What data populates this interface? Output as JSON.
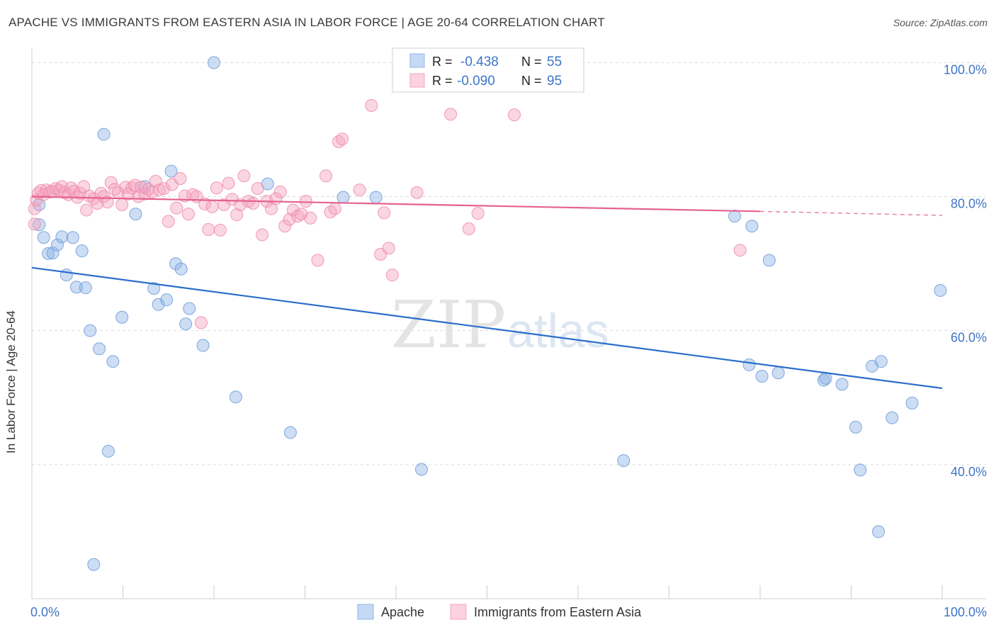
{
  "header": {
    "title": "APACHE VS IMMIGRANTS FROM EASTERN ASIA IN LABOR FORCE | AGE 20-64 CORRELATION CHART",
    "source": "Source: ZipAtlas.com"
  },
  "watermark": {
    "zip": "ZIP",
    "atlas": "atlas"
  },
  "colors": {
    "apache": "#8fb4e6",
    "apache_line": "#2a6dcc",
    "eastern_asia": "#f4a5bf",
    "eastern_asia_line": "#e5628e",
    "tick_text": "#3f76c8",
    "grid": "#dcdcdc"
  },
  "stats_box": {
    "rows": [
      {
        "r_label": "R =",
        "r_value": "-0.438",
        "n_label": "N =",
        "n_value": "55"
      },
      {
        "r_label": "R =",
        "r_value": "-0.090",
        "n_label": "N =",
        "n_value": "95"
      }
    ]
  },
  "chart_data": {
    "type": "scatter",
    "title": "APACHE VS IMMIGRANTS FROM EASTERN ASIA IN LABOR FORCE | AGE 20-64 CORRELATION CHART",
    "xlabel": "",
    "ylabel": "In Labor Force | Age 20-64",
    "xlim": [
      0,
      100
    ],
    "ylim": [
      20,
      103
    ],
    "x_tick_labels": [
      "0.0%",
      "100.0%"
    ],
    "y_ticks": [
      40,
      60,
      80,
      100
    ],
    "y_tick_labels": [
      "40.0%",
      "60.0%",
      "80.0%",
      "100.0%"
    ],
    "grid": true,
    "legend_position": "bottom",
    "series": [
      {
        "name": "Apache",
        "R": -0.438,
        "N": 55,
        "trend": {
          "x": [
            0,
            100
          ],
          "y": [
            69.4,
            51.4
          ]
        },
        "points": [
          [
            0.8,
            78.8
          ],
          [
            0.8,
            75.8
          ],
          [
            1.3,
            73.9
          ],
          [
            1.8,
            71.5
          ],
          [
            2.3,
            71.6
          ],
          [
            2.8,
            72.8
          ],
          [
            3.3,
            74.0
          ],
          [
            3.8,
            68.3
          ],
          [
            4.5,
            73.9
          ],
          [
            4.9,
            66.5
          ],
          [
            5.5,
            71.9
          ],
          [
            5.9,
            66.4
          ],
          [
            6.4,
            60.0
          ],
          [
            7.4,
            57.3
          ],
          [
            7.9,
            89.3
          ],
          [
            8.4,
            42.0
          ],
          [
            8.9,
            55.4
          ],
          [
            9.9,
            62.0
          ],
          [
            11.4,
            77.4
          ],
          [
            12.4,
            81.5
          ],
          [
            13.4,
            66.3
          ],
          [
            13.9,
            63.9
          ],
          [
            14.8,
            64.6
          ],
          [
            15.3,
            83.8
          ],
          [
            15.8,
            70.0
          ],
          [
            16.4,
            69.2
          ],
          [
            16.9,
            61.0
          ],
          [
            17.3,
            63.3
          ],
          [
            18.8,
            57.8
          ],
          [
            20.0,
            100.0
          ],
          [
            22.4,
            50.1
          ],
          [
            25.9,
            81.9
          ],
          [
            28.4,
            44.8
          ],
          [
            34.2,
            79.9
          ],
          [
            37.8,
            79.9
          ],
          [
            42.8,
            39.3
          ],
          [
            65.0,
            40.6
          ],
          [
            77.2,
            77.1
          ],
          [
            78.8,
            54.9
          ],
          [
            79.1,
            75.6
          ],
          [
            80.2,
            53.2
          ],
          [
            81.0,
            70.5
          ],
          [
            82.0,
            53.7
          ],
          [
            87.0,
            52.6
          ],
          [
            87.2,
            52.9
          ],
          [
            89.0,
            52.0
          ],
          [
            90.5,
            45.6
          ],
          [
            91.0,
            39.2
          ],
          [
            92.3,
            54.7
          ],
          [
            93.0,
            30.0
          ],
          [
            93.3,
            55.4
          ],
          [
            94.5,
            47.0
          ],
          [
            96.7,
            49.2
          ],
          [
            99.8,
            66.0
          ],
          [
            6.8,
            25.1
          ]
        ]
      },
      {
        "name": "Immigrants from Eastern Asia",
        "R": -0.09,
        "N": 95,
        "trend": {
          "x": [
            0,
            80.0,
            100
          ],
          "y": [
            80.0,
            77.8,
            77.2
          ],
          "dashed_from_x": 80.0
        },
        "points": [
          [
            0.3,
            78.2
          ],
          [
            0.5,
            79.5
          ],
          [
            0.7,
            80.5
          ],
          [
            1.0,
            80.9
          ],
          [
            1.3,
            80.3
          ],
          [
            1.6,
            81.0
          ],
          [
            2.0,
            80.7
          ],
          [
            2.3,
            80.8
          ],
          [
            2.6,
            81.2
          ],
          [
            3.0,
            81.0
          ],
          [
            3.3,
            81.5
          ],
          [
            3.6,
            80.6
          ],
          [
            4.0,
            80.3
          ],
          [
            4.3,
            81.3
          ],
          [
            4.6,
            80.8
          ],
          [
            5.0,
            79.9
          ],
          [
            5.3,
            80.5
          ],
          [
            5.7,
            81.5
          ],
          [
            6.0,
            78.0
          ],
          [
            6.3,
            80.1
          ],
          [
            6.8,
            79.7
          ],
          [
            7.2,
            79.0
          ],
          [
            7.6,
            80.5
          ],
          [
            7.9,
            80.0
          ],
          [
            8.3,
            79.2
          ],
          [
            8.7,
            82.1
          ],
          [
            9.1,
            81.1
          ],
          [
            9.5,
            80.6
          ],
          [
            9.9,
            78.8
          ],
          [
            10.3,
            81.4
          ],
          [
            10.6,
            80.4
          ],
          [
            11.0,
            81.3
          ],
          [
            11.3,
            81.7
          ],
          [
            11.7,
            80.0
          ],
          [
            12.0,
            81.4
          ],
          [
            12.4,
            80.4
          ],
          [
            12.8,
            81.1
          ],
          [
            13.2,
            80.7
          ],
          [
            13.6,
            82.3
          ],
          [
            14.0,
            81.0
          ],
          [
            14.5,
            81.2
          ],
          [
            15.0,
            76.3
          ],
          [
            15.4,
            81.8
          ],
          [
            15.9,
            78.3
          ],
          [
            16.3,
            82.7
          ],
          [
            16.8,
            80.1
          ],
          [
            17.2,
            77.4
          ],
          [
            17.7,
            80.3
          ],
          [
            18.1,
            80.0
          ],
          [
            18.6,
            61.2
          ],
          [
            19.0,
            78.9
          ],
          [
            19.4,
            75.1
          ],
          [
            19.8,
            78.5
          ],
          [
            20.3,
            81.3
          ],
          [
            20.7,
            75.0
          ],
          [
            21.1,
            78.8
          ],
          [
            21.6,
            82.0
          ],
          [
            22.0,
            79.6
          ],
          [
            22.5,
            77.3
          ],
          [
            22.9,
            78.8
          ],
          [
            23.3,
            83.1
          ],
          [
            23.8,
            79.3
          ],
          [
            24.3,
            79.0
          ],
          [
            24.8,
            81.2
          ],
          [
            25.3,
            74.3
          ],
          [
            25.8,
            79.3
          ],
          [
            26.3,
            78.2
          ],
          [
            26.8,
            79.7
          ],
          [
            27.3,
            80.7
          ],
          [
            27.8,
            75.6
          ],
          [
            28.3,
            76.6
          ],
          [
            28.7,
            78.0
          ],
          [
            29.2,
            77.1
          ],
          [
            29.6,
            77.4
          ],
          [
            30.1,
            79.3
          ],
          [
            30.6,
            76.8
          ],
          [
            31.4,
            70.5
          ],
          [
            32.3,
            83.1
          ],
          [
            32.8,
            77.7
          ],
          [
            33.3,
            78.2
          ],
          [
            33.7,
            88.2
          ],
          [
            34.1,
            88.6
          ],
          [
            36.0,
            81.0
          ],
          [
            37.3,
            93.6
          ],
          [
            38.3,
            71.4
          ],
          [
            38.7,
            77.6
          ],
          [
            39.2,
            72.3
          ],
          [
            39.6,
            68.3
          ],
          [
            42.3,
            80.6
          ],
          [
            46.0,
            92.3
          ],
          [
            48.0,
            75.2
          ],
          [
            49.0,
            77.5
          ],
          [
            53.0,
            92.2
          ],
          [
            77.8,
            72.0
          ],
          [
            0.3,
            75.9
          ]
        ]
      }
    ]
  },
  "legend": {
    "items": [
      {
        "label": "Apache"
      },
      {
        "label": "Immigrants from Eastern Asia"
      }
    ]
  }
}
